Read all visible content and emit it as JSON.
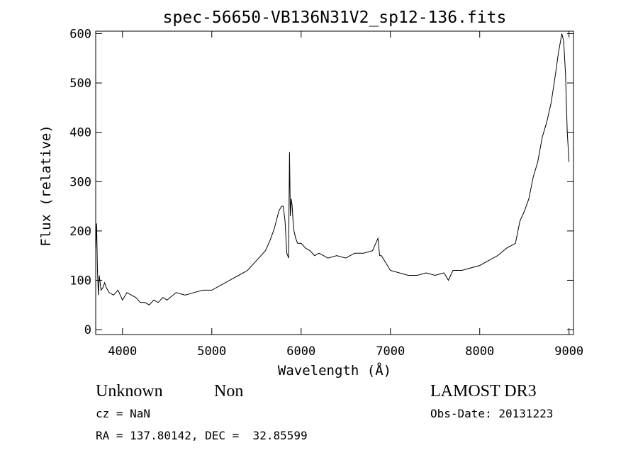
{
  "chart_data": {
    "type": "line",
    "title": "spec-56650-VB136N31V2_sp12-136.fits",
    "xlabel": "Wavelength (Å)",
    "ylabel": "Flux (relative)",
    "xlim": [
      3700,
      9050
    ],
    "ylim": [
      -10,
      605
    ],
    "x_ticks": [
      4000,
      5000,
      6000,
      7000,
      8000,
      9000
    ],
    "y_ticks": [
      0,
      100,
      200,
      300,
      400,
      500,
      600
    ],
    "grid": false,
    "series": [
      {
        "x": [
          3700,
          3710,
          3720,
          3730,
          3740,
          3750,
          3760,
          3780,
          3800,
          3820,
          3850,
          3900,
          3950,
          4000,
          4050,
          4100,
          4150,
          4200,
          4250,
          4300,
          4350,
          4400,
          4450,
          4500,
          4600,
          4700,
          4800,
          4900,
          5000,
          5100,
          5200,
          5300,
          5400,
          5500,
          5600,
          5650,
          5700,
          5750,
          5780,
          5800,
          5820,
          5840,
          5860,
          5870,
          5880,
          5890,
          5900,
          5910,
          5920,
          5940,
          5960,
          6000,
          6050,
          6100,
          6150,
          6200,
          6300,
          6400,
          6500,
          6600,
          6700,
          6800,
          6860,
          6880,
          6900,
          6950,
          7000,
          7100,
          7200,
          7300,
          7400,
          7500,
          7600,
          7650,
          7700,
          7800,
          7900,
          8000,
          8100,
          8200,
          8300,
          8400,
          8450,
          8500,
          8550,
          8600,
          8650,
          8700,
          8750,
          8800,
          8850,
          8880,
          8900,
          8920,
          8940,
          8960,
          8980,
          9000
        ],
        "y": [
          160,
          215,
          120,
          70,
          110,
          95,
          80,
          85,
          95,
          85,
          75,
          70,
          80,
          60,
          75,
          70,
          65,
          55,
          55,
          50,
          60,
          55,
          65,
          60,
          75,
          70,
          75,
          80,
          80,
          90,
          100,
          110,
          120,
          140,
          160,
          180,
          205,
          240,
          250,
          250,
          220,
          155,
          145,
          360,
          230,
          265,
          250,
          220,
          200,
          185,
          175,
          175,
          165,
          160,
          150,
          155,
          145,
          150,
          145,
          155,
          155,
          160,
          185,
          150,
          150,
          135,
          120,
          115,
          110,
          110,
          115,
          110,
          115,
          100,
          120,
          120,
          125,
          130,
          140,
          150,
          165,
          175,
          220,
          240,
          265,
          310,
          340,
          390,
          420,
          460,
          520,
          560,
          580,
          600,
          585,
          520,
          400,
          340
        ]
      }
    ],
    "annotations": {
      "object_class": "Unknown",
      "object_subclass": "Non",
      "survey": "LAMOST DR3",
      "redshift": "cz = NaN",
      "obs_date": "Obs-Date: 20131223",
      "coords": "RA = 137.80142, DEC =  32.85599"
    }
  }
}
